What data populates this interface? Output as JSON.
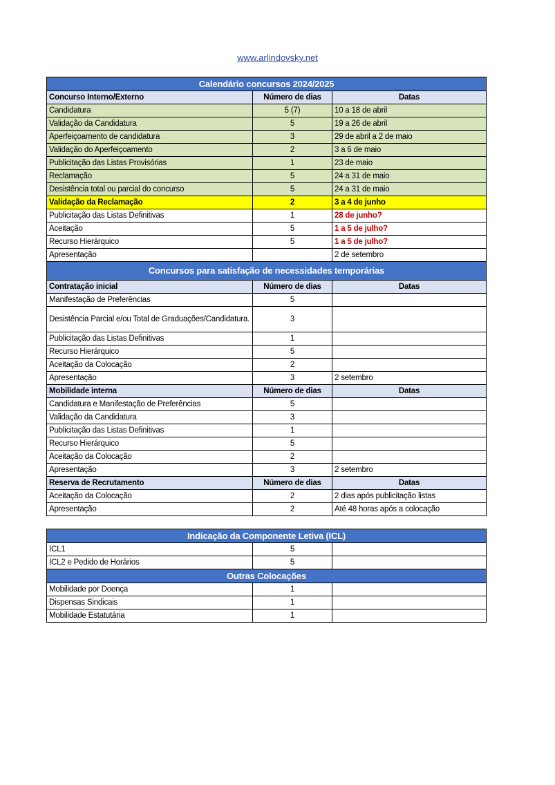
{
  "header": {
    "link": "www.arlindovsky.net "
  },
  "colors": {
    "title_bg": "#4472c4",
    "header_bg": "#d9e1f2",
    "green": "#d8e4bc",
    "yellow": "#ffff00",
    "red_text": "#c00000"
  },
  "table1": [
    {
      "type": "title",
      "text": "Calendário concursos 2024/2025"
    },
    {
      "type": "head",
      "cells": [
        "Concurso Interno/Externo",
        "Número de dias",
        "Datas"
      ]
    },
    {
      "type": "row",
      "style": "green",
      "cells": [
        "Candidatura",
        "5 (7)",
        "10 a 18 de abril"
      ]
    },
    {
      "type": "row",
      "style": "green",
      "cells": [
        "Validação da Candidatura",
        "5",
        "19 a 26 de abril"
      ]
    },
    {
      "type": "row",
      "style": "green",
      "cells": [
        "Aperfeiçoamento de candidatura",
        "3",
        "29 de abril a 2 de maio"
      ]
    },
    {
      "type": "row",
      "style": "green",
      "cells": [
        "Validação do Aperfeiçoamento",
        "2",
        "3 a 6 de maio"
      ]
    },
    {
      "type": "row",
      "style": "green",
      "cells": [
        "Publicitação das Listas Provisórias",
        "1",
        "23 de maio"
      ]
    },
    {
      "type": "row",
      "style": "green",
      "cells": [
        "Reclamação",
        "5",
        "24 a 31 de maio"
      ]
    },
    {
      "type": "row",
      "style": "green",
      "cells": [
        "Desistência total ou parcial do concurso",
        "5",
        "24 a 31 de maio"
      ]
    },
    {
      "type": "row",
      "style": "yellow",
      "cells": [
        "Validação da Reclamação",
        "2",
        "3 a 4 de junho"
      ]
    },
    {
      "type": "row",
      "style": "white",
      "red_date": true,
      "cells": [
        "Publicitação das Listas Definitivas",
        "1",
        "28 de junho?"
      ]
    },
    {
      "type": "row",
      "style": "white",
      "red_date": true,
      "cells": [
        "Aceitação",
        "5",
        "1 a 5 de julho?"
      ]
    },
    {
      "type": "row",
      "style": "white",
      "red_date": true,
      "cells": [
        "Recurso Hierárquico",
        "5",
        "1 a 5 de julho?"
      ]
    },
    {
      "type": "row",
      "style": "white",
      "cells": [
        "Apresentação",
        "",
        "2 de setembro"
      ]
    },
    {
      "type": "title",
      "tall": true,
      "text": "Concursos para satisfação de necessidades temporárias"
    },
    {
      "type": "head",
      "cells": [
        "Contratação inicial",
        "Número de dias",
        "Datas"
      ]
    },
    {
      "type": "row",
      "style": "white",
      "cells": [
        "Manifestação de Preferências",
        "5",
        ""
      ]
    },
    {
      "type": "row",
      "style": "white",
      "double": true,
      "cells": [
        "Desistência Parcial e/ou Total de Graduações/Candidatura.",
        "3",
        ""
      ]
    },
    {
      "type": "row",
      "style": "white",
      "cells": [
        "Publicitação das Listas Definitivas",
        "1",
        ""
      ]
    },
    {
      "type": "row",
      "style": "white",
      "cells": [
        "Recurso Hierárquico",
        "5",
        ""
      ]
    },
    {
      "type": "row",
      "style": "white",
      "cells": [
        "Aceitação da Colocação",
        "2",
        ""
      ]
    },
    {
      "type": "row",
      "style": "white",
      "cells": [
        "Apresentação",
        "3",
        "2 setembro"
      ]
    },
    {
      "type": "head",
      "cells": [
        "Mobilidade interna",
        "Número de dias",
        "Datas"
      ]
    },
    {
      "type": "row",
      "style": "white",
      "cells": [
        "Candidatura e Manifestação de Preferências",
        "5",
        ""
      ]
    },
    {
      "type": "row",
      "style": "white",
      "cells": [
        "Validação da Candidatura",
        "3",
        ""
      ]
    },
    {
      "type": "row",
      "style": "white",
      "cells": [
        "Publicitação das Listas Definitivas",
        "1",
        ""
      ]
    },
    {
      "type": "row",
      "style": "white",
      "cells": [
        "Recurso Hierárquico",
        "5",
        ""
      ]
    },
    {
      "type": "row",
      "style": "white",
      "cells": [
        "Aceitação da Colocação",
        "2",
        ""
      ]
    },
    {
      "type": "row",
      "style": "white",
      "cells": [
        "Apresentação",
        "3",
        "2 setembro"
      ]
    },
    {
      "type": "head",
      "cells": [
        "Reserva de Recrutamento",
        "Número de dias",
        "Datas"
      ]
    },
    {
      "type": "row",
      "style": "white",
      "cells": [
        "Aceitação da Colocação",
        "2",
        "2 dias após publicitação listas"
      ]
    },
    {
      "type": "row",
      "style": "white",
      "cells": [
        "Apresentação",
        "2",
        "Até 48 horas após a colocação"
      ]
    }
  ],
  "table2": [
    {
      "type": "title",
      "text": "Indicação da Componente Letiva (ICL)"
    },
    {
      "type": "row",
      "style": "white",
      "cells": [
        "ICL1",
        "5",
        ""
      ]
    },
    {
      "type": "row",
      "style": "white",
      "cells": [
        "ICL2 e Pedido de Horários",
        "5",
        ""
      ]
    },
    {
      "type": "title",
      "text": "Outras Colocações"
    },
    {
      "type": "row",
      "style": "white",
      "cells": [
        "Mobilidade por Doença",
        "1",
        ""
      ]
    },
    {
      "type": "row",
      "style": "white",
      "cells": [
        "Dispensas Sindicais",
        "1",
        ""
      ]
    },
    {
      "type": "row",
      "style": "white",
      "cells": [
        "Mobilidade Estatutária",
        "1",
        ""
      ]
    }
  ]
}
